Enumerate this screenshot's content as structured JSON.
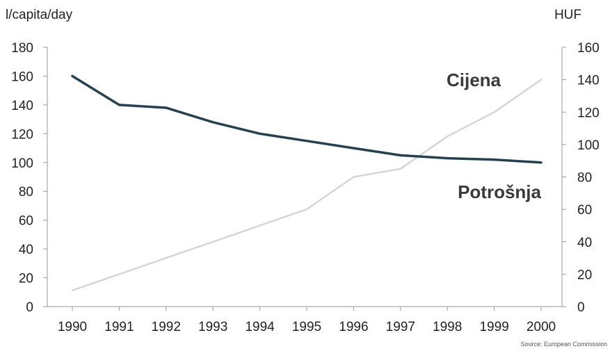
{
  "chart_data": {
    "type": "line",
    "title": "",
    "ylabel_left": "l/capita/day",
    "ylabel_right": "HUF",
    "source": "Source: European Commission",
    "categories": [
      "1990",
      "1991",
      "1992",
      "1993",
      "1994",
      "1995",
      "1996",
      "1997",
      "1998",
      "1999",
      "2000"
    ],
    "y_left": {
      "min": 0,
      "max": 180,
      "ticks": [
        0,
        20,
        40,
        60,
        80,
        100,
        120,
        140,
        160,
        180
      ]
    },
    "y_right": {
      "min": 0,
      "max": 160,
      "ticks": [
        0,
        20,
        40,
        60,
        80,
        100,
        120,
        140,
        160
      ]
    },
    "series": [
      {
        "name": "Potrošnja",
        "axis": "left",
        "color": "#25404e",
        "values": [
          160,
          140,
          138,
          128,
          120,
          115,
          110,
          105,
          103,
          102,
          100
        ]
      },
      {
        "name": "Cijena",
        "axis": "right",
        "color": "#d6d6d6",
        "values": [
          10,
          20,
          30,
          40,
          50,
          60,
          80,
          85,
          105,
          120,
          140
        ]
      }
    ],
    "grid": false
  }
}
